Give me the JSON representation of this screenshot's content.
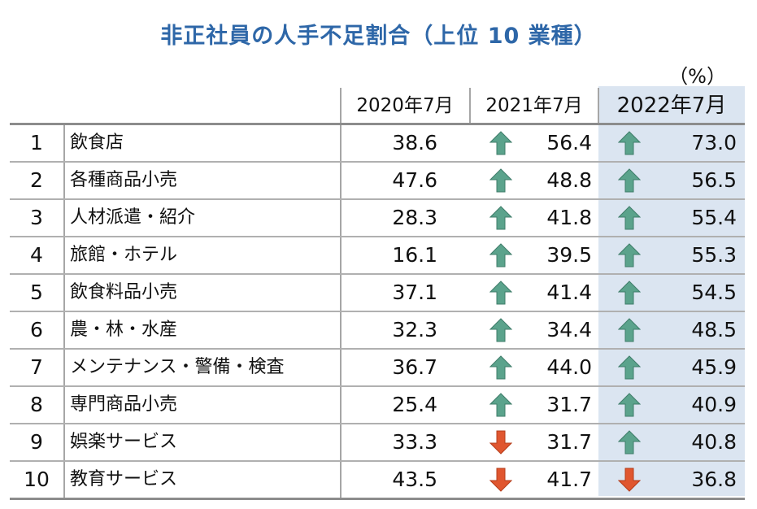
{
  "title": "非正社員の人手不足割合（上位 10 業種）",
  "unit": "（%）",
  "headers": [
    "2020年7月",
    "2021年7月",
    "2022年7月"
  ],
  "colors": {
    "title": "#2e67a8",
    "up": "#5ba38c",
    "down": "#e0562f",
    "highlight": "#dbe5f1"
  },
  "chart_data": {
    "type": "table",
    "columns": [
      "2020年7月",
      "2021年7月",
      "2022年7月"
    ],
    "rows": [
      {
        "rank": "1",
        "industry": "飲食店",
        "v2020": "38.6",
        "v2021": "56.4",
        "v2022": "73.0",
        "trend2021": "up",
        "trend2022": "up"
      },
      {
        "rank": "2",
        "industry": "各種商品小売",
        "v2020": "47.6",
        "v2021": "48.8",
        "v2022": "56.5",
        "trend2021": "up",
        "trend2022": "up"
      },
      {
        "rank": "3",
        "industry": "人材派遣・紹介",
        "v2020": "28.3",
        "v2021": "41.8",
        "v2022": "55.4",
        "trend2021": "up",
        "trend2022": "up"
      },
      {
        "rank": "4",
        "industry": "旅館・ホテル",
        "v2020": "16.1",
        "v2021": "39.5",
        "v2022": "55.3",
        "trend2021": "up",
        "trend2022": "up"
      },
      {
        "rank": "5",
        "industry": "飲食料品小売",
        "v2020": "37.1",
        "v2021": "41.4",
        "v2022": "54.5",
        "trend2021": "up",
        "trend2022": "up"
      },
      {
        "rank": "6",
        "industry": "農・林・水産",
        "v2020": "32.3",
        "v2021": "34.4",
        "v2022": "48.5",
        "trend2021": "up",
        "trend2022": "up"
      },
      {
        "rank": "7",
        "industry": "メンテナンス・警備・検査",
        "v2020": "36.7",
        "v2021": "44.0",
        "v2022": "45.9",
        "trend2021": "up",
        "trend2022": "up"
      },
      {
        "rank": "8",
        "industry": "専門商品小売",
        "v2020": "25.4",
        "v2021": "31.7",
        "v2022": "40.9",
        "trend2021": "up",
        "trend2022": "up"
      },
      {
        "rank": "9",
        "industry": "娯楽サービス",
        "v2020": "33.3",
        "v2021": "31.7",
        "v2022": "40.8",
        "trend2021": "down",
        "trend2022": "up"
      },
      {
        "rank": "10",
        "industry": "教育サービス",
        "v2020": "43.5",
        "v2021": "41.7",
        "v2022": "36.8",
        "trend2021": "down",
        "trend2022": "down"
      }
    ]
  }
}
